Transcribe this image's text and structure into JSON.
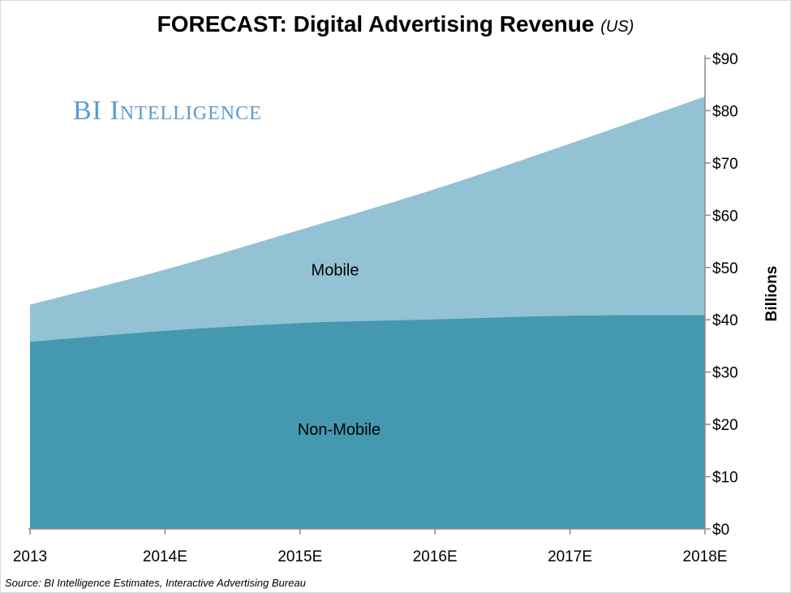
{
  "chart_data": {
    "type": "area",
    "stacked": true,
    "title": "FORECAST: Digital Advertising Revenue",
    "subtitle": "(US)",
    "categories": [
      "2013",
      "2014E",
      "2015E",
      "2016E",
      "2017E",
      "2018E"
    ],
    "series": [
      {
        "name": "Non-Mobile",
        "values": [
          35.8,
          37.9,
          39.4,
          40.1,
          40.8,
          40.9
        ],
        "color": "#4499b0"
      },
      {
        "name": "Mobile",
        "values": [
          7.1,
          11.7,
          17.8,
          24.9,
          32.9,
          41.8
        ],
        "color": "#92c2d3"
      }
    ],
    "totals": [
      42.9,
      49.6,
      57.2,
      65.0,
      73.7,
      82.7
    ],
    "ylabel": "Billions",
    "ylim": [
      0,
      90
    ],
    "yticks": [
      "$0",
      "$10",
      "$20",
      "$30",
      "$40",
      "$50",
      "$60",
      "$70",
      "$80",
      "$90"
    ],
    "y_axis_side": "right",
    "grid": false,
    "labels": {
      "mobile": "Mobile",
      "non_mobile": "Non-Mobile"
    }
  },
  "watermark": "BI Intelligence",
  "source": "Source: BI Intelligence Estimates, Interactive Advertising Bureau"
}
